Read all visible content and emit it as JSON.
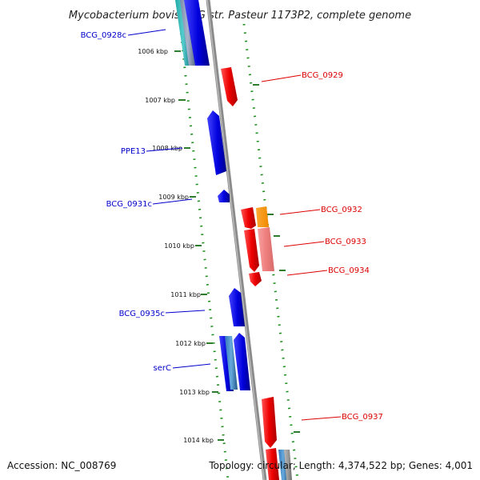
{
  "title": "Mycobacterium bovis BCG str. Pasteur 1173P2, complete genome",
  "footer": {
    "accession": "Accession: NC_008769",
    "topology": "Topology: circular; Length: 4,374,522 bp; Genes: 4,001"
  },
  "ruler": [
    {
      "label": "1006 kbp"
    },
    {
      "label": "1007 kbp"
    },
    {
      "label": "1008 kbp"
    },
    {
      "label": "1009 kbp"
    },
    {
      "label": "1010 kbp"
    },
    {
      "label": "1011 kbp"
    },
    {
      "label": "1012 kbp"
    },
    {
      "label": "1013 kbp"
    },
    {
      "label": "1014 kbp"
    }
  ],
  "genes": {
    "minus_strand": [
      {
        "label": "BCG_0928c"
      },
      {
        "label": "PPE13"
      },
      {
        "label": "BCG_0931c"
      },
      {
        "label": "BCG_0935c"
      },
      {
        "label": "serC"
      }
    ],
    "plus_strand": [
      {
        "label": "BCG_0929"
      },
      {
        "label": "BCG_0932"
      },
      {
        "label": "BCG_0933"
      },
      {
        "label": "BCG_0934"
      },
      {
        "label": "BCG_0937"
      }
    ]
  },
  "colors": {
    "minus_strand": "#0000cc",
    "plus_strand": "#dd0000",
    "backbone": "#808080",
    "gc_dots": "#1a8c1a",
    "orange_feature": "#ff9900"
  }
}
